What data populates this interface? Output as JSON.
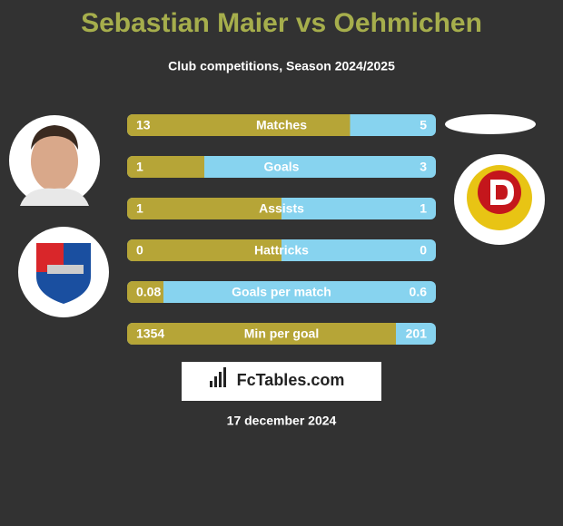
{
  "title": "Sebastian Maier vs Oehmichen",
  "subtitle": "Club competitions, Season 2024/2025",
  "rows": [
    {
      "label": "Matches",
      "left": 13,
      "right": 5
    },
    {
      "label": "Goals",
      "left": 1,
      "right": 3
    },
    {
      "label": "Assists",
      "left": 1,
      "right": 1
    },
    {
      "label": "Hattricks",
      "left": 0,
      "right": 0
    },
    {
      "label": "Goals per match",
      "left": 0.08,
      "right": 0.6
    },
    {
      "label": "Min per goal",
      "left": 1354,
      "right": 201
    }
  ],
  "brand": "FcTables.com",
  "date": "17 december 2024"
}
